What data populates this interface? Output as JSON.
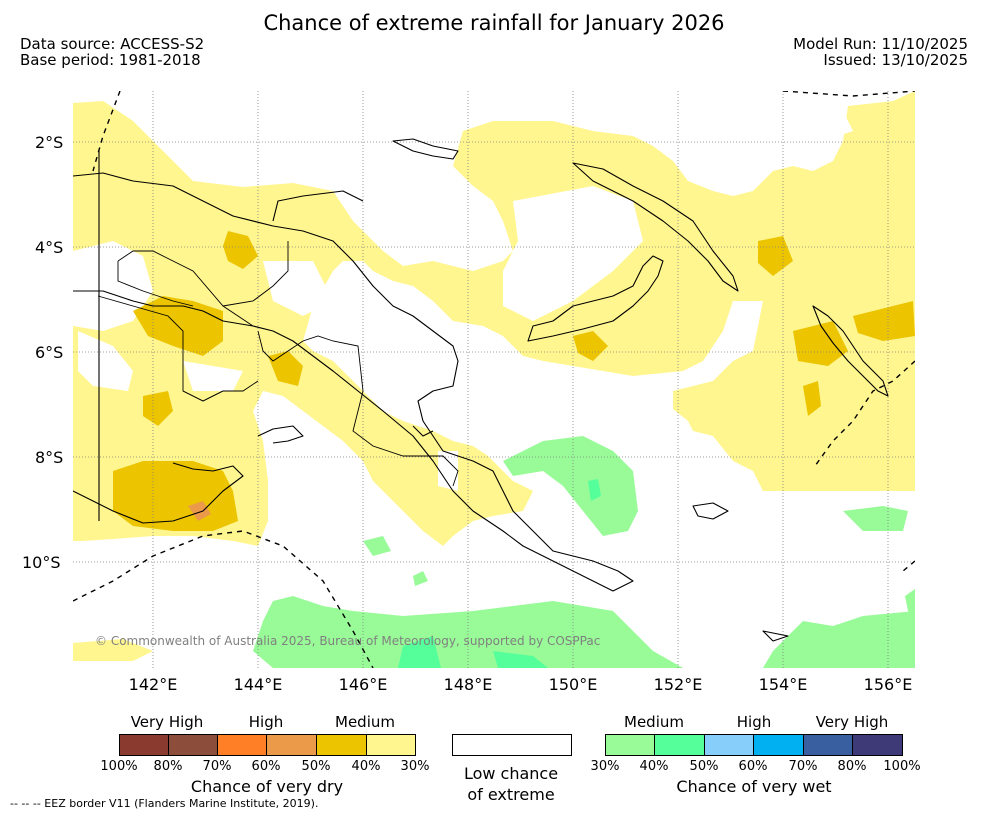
{
  "title": "Chance of extreme rainfall for January 2026",
  "data_source": "Data source: ACCESS-S2",
  "base_period": "Base period: 1981-2018",
  "model_run": "Model Run: 11/10/2025",
  "issued": "Issued: 13/10/2025",
  "latitude_labels": [
    "2°S",
    "4°S",
    "6°S",
    "8°S",
    "10°S"
  ],
  "longitude_labels": [
    "142°E",
    "144°E",
    "146°E",
    "148°E",
    "150°E",
    "152°E",
    "154°E",
    "156°E"
  ],
  "copyright": "© Commonwealth of Australia 2025, Bureau of Meteorology, supported by COSPPac",
  "legend": {
    "dry": {
      "levels": [
        "Very High",
        "High",
        "Medium"
      ],
      "colors": [
        "#8b3a2f",
        "#8c4e3a",
        "#ff7f27",
        "#eb9a4a",
        "#ecc500",
        "#fff68f"
      ],
      "ticks": [
        "100%",
        "80%",
        "70%",
        "60%",
        "50%",
        "40%",
        "30%"
      ],
      "caption": "Chance of very dry"
    },
    "low": {
      "color": "#ffffff",
      "caption_line1": "Low chance",
      "caption_line2": "of extreme"
    },
    "wet": {
      "levels": [
        "Medium",
        "High",
        "Very High"
      ],
      "colors": [
        "#98fb98",
        "#55ff99",
        "#87cefa",
        "#00b0f0",
        "#3a5fa0",
        "#3e3a78"
      ],
      "ticks": [
        "30%",
        "40%",
        "50%",
        "60%",
        "70%",
        "80%",
        "100%"
      ],
      "caption": "Chance of very wet"
    }
  },
  "eez_note": "--  --  -- EEZ border V11 (Flanders Marine Institute, 2019)."
}
